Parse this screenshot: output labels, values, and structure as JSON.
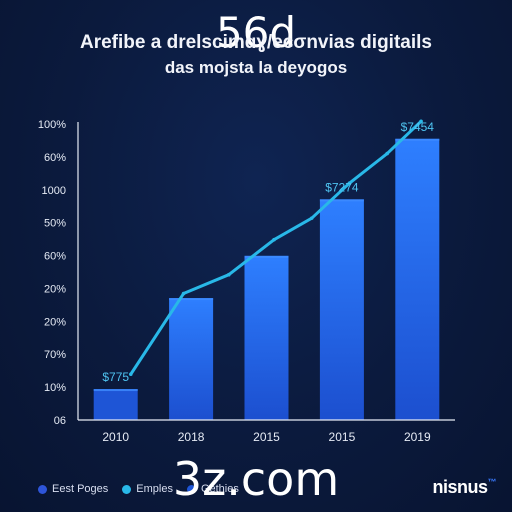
{
  "overlay": {
    "top_text": "56d",
    "bottom_text": "3z.com"
  },
  "brand": {
    "name": "nisnus",
    "sup": "™"
  },
  "colors": {
    "bar_light": "#2b7fff",
    "bar_dark": "#1e55d6",
    "line": "#29b8e8",
    "axis": "#e6ebf5",
    "tick_label": "#e6ebf5"
  },
  "chart_data": {
    "type": "bar",
    "title": "Arefibe a drelscimɑɣ/ecσnvias digitails",
    "subtitle": "das mojsta la deyogos",
    "categories": [
      "2010",
      "2018",
      "2015",
      "2015",
      "2019"
    ],
    "y_tick_labels": [
      "100%",
      "60%",
      "1000",
      "50%",
      "60%",
      "20%",
      "20%",
      "70%",
      "10%",
      "06"
    ],
    "values": [
      1.15,
      4.53,
      6.1,
      8.2,
      10.45
    ],
    "ylim": [
      0,
      11
    ],
    "line": {
      "name": "Emples",
      "x": [
        0.2,
        0.9,
        1.5,
        2.1,
        2.6,
        3.1,
        3.6,
        4.05
      ],
      "y": [
        1.7,
        4.7,
        5.4,
        6.7,
        7.5,
        8.8,
        9.9,
        11.1
      ]
    },
    "data_labels": [
      {
        "index": 0,
        "text": "$775"
      },
      {
        "index": 3,
        "text": "$7274"
      },
      {
        "index": 4,
        "text": "$7454"
      }
    ],
    "legend": [
      {
        "label": "Eest Poges",
        "color": "#2e55d9"
      },
      {
        "label": "Emples",
        "color": "#29b8e8"
      },
      {
        "label": "Gethies",
        "color": "#1e55d6"
      }
    ],
    "legend_position": "bottom-left",
    "grid": false
  }
}
